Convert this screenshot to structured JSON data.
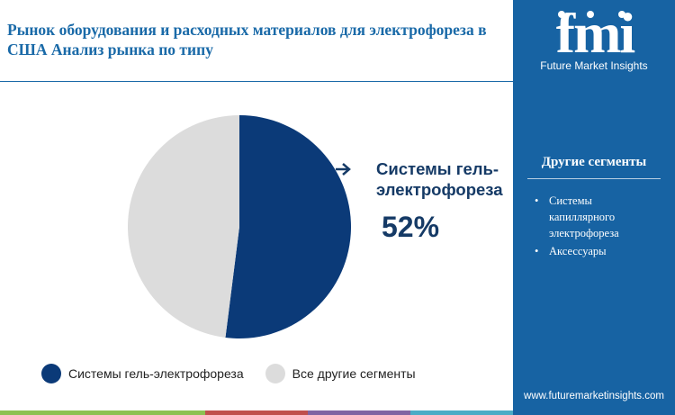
{
  "title": "Рынок оборудования и расходных материалов для электрофореза в США Анализ рынка  по типу",
  "brand": {
    "logo_text": "fmi",
    "name": "Future Market Insights",
    "url": "www.futuremarketinsights.com"
  },
  "sidebar": {
    "heading": "Другие сегменты",
    "items": [
      "Системы капиллярного электрофореза",
      "Аксессуары"
    ]
  },
  "callout": {
    "label": "Системы гель-электрофореза",
    "value": "52%"
  },
  "colors": {
    "primary": "#0b3a78",
    "other": "#dcdcdc",
    "accent": "#1763a3"
  },
  "chart_data": {
    "type": "pie",
    "title": "",
    "slices": [
      {
        "name": "Системы гель-электрофореза",
        "value": 52,
        "color": "#0b3a78"
      },
      {
        "name": "Все другие сегменты",
        "value": 48,
        "color": "#dcdcdc"
      }
    ],
    "legend": [
      "Системы гель-электрофореза",
      "Все другие сегменты"
    ],
    "legend_position": "bottom"
  }
}
